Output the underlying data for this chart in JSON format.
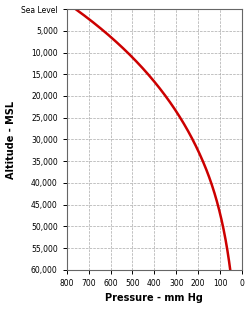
{
  "title": "",
  "xlabel": "Pressure - mm Hg",
  "ylabel": "Altitude - MSL",
  "x_min": 0,
  "x_max": 800,
  "y_min": 0,
  "y_max": 60000,
  "x_ticks": [
    0,
    100,
    200,
    300,
    400,
    500,
    600,
    700,
    800
  ],
  "y_ticks": [
    0,
    5000,
    10000,
    15000,
    20000,
    25000,
    30000,
    35000,
    40000,
    45000,
    50000,
    55000,
    60000
  ],
  "y_tick_labels": [
    "Sea Level",
    "5,000",
    "10,000",
    "15,000",
    "20,000",
    "25,000",
    "30,000",
    "35,000",
    "40,000",
    "45,000",
    "50,000",
    "55,000",
    "60,000"
  ],
  "line_color": "#cc0000",
  "line_width": 1.8,
  "grid_color": "#aaaaaa",
  "grid_style": "--",
  "bg_color": "#ffffff"
}
